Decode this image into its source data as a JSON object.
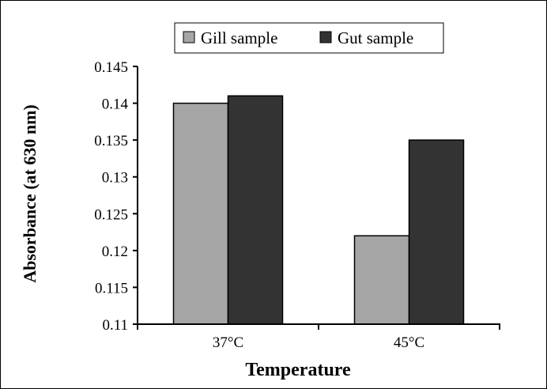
{
  "chart_data": {
    "type": "bar",
    "categories": [
      "37°C",
      "45°C"
    ],
    "series": [
      {
        "name": "Gill sample",
        "values": [
          0.14,
          0.122
        ],
        "color": "#a6a6a6"
      },
      {
        "name": "Gut sample",
        "values": [
          0.141,
          0.135
        ],
        "color": "#333333"
      }
    ],
    "xlabel": "Temperature",
    "ylabel": "Absorbance (at 630 nm)",
    "ylim": [
      0.11,
      0.145
    ],
    "yticks": [
      0.11,
      0.115,
      0.12,
      0.125,
      0.13,
      0.135,
      0.14,
      0.145
    ],
    "ytick_labels": [
      "0.11",
      "0.115",
      "0.12",
      "0.125",
      "0.13",
      "0.135",
      "0.14",
      "0.145"
    ],
    "grid": false,
    "legend_position": "top"
  }
}
